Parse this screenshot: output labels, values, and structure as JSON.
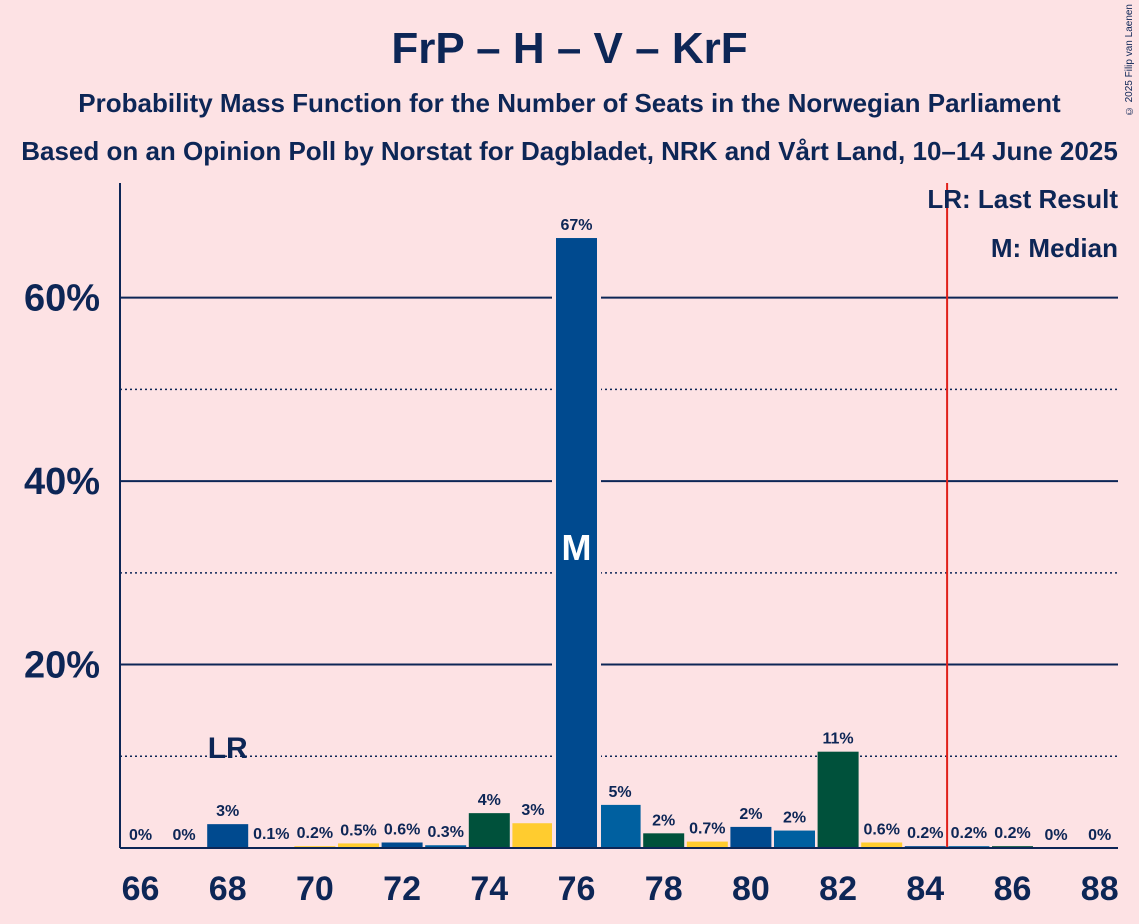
{
  "title": "FrP – H – V – KrF",
  "subtitle": "Probability Mass Function for the Number of Seats in the Norwegian Parliament",
  "subtitle2": "Based on an Opinion Poll by Norstat for Dagbladet, NRK and Vårt Land, 10–14 June 2025",
  "copyright": "© 2025 Filip van Laenen",
  "legend": {
    "lr": "LR: Last Result",
    "median": "M: Median"
  },
  "colors": {
    "background": "#fde2e4",
    "navy": "#0d2656",
    "frp": "#004a8f",
    "h": "#0060a0",
    "v": "#00513b",
    "krf": "#ffcc2f",
    "majority_line": "#e0201a"
  },
  "chart_data": {
    "type": "bar",
    "x": [
      66,
      67,
      68,
      69,
      70,
      71,
      72,
      73,
      74,
      75,
      76,
      77,
      78,
      79,
      80,
      81,
      82,
      83,
      84,
      85,
      86,
      87,
      88
    ],
    "values": [
      0,
      0,
      2.6,
      0.1,
      0.2,
      0.5,
      0.6,
      0.3,
      3.8,
      2.7,
      66.5,
      4.7,
      1.6,
      0.7,
      2.3,
      1.9,
      10.5,
      0.6,
      0.2,
      0.2,
      0.2,
      0,
      0
    ],
    "labels": [
      "0%",
      "0%",
      "3%",
      "0.1%",
      "0.2%",
      "0.5%",
      "0.6%",
      "0.3%",
      "4%",
      "3%",
      "67%",
      "5%",
      "2%",
      "0.7%",
      "2%",
      "2%",
      "11%",
      "0.6%",
      "0.2%",
      "0.2%",
      "0.2%",
      "0%",
      "0%"
    ],
    "bar_colors": [
      "#004a8f",
      "#0060a0",
      "#004a8f",
      "#00513b",
      "#ffcc2f",
      "#ffcc2f",
      "#004a8f",
      "#0060a0",
      "#00513b",
      "#ffcc2f",
      "#004a8f",
      "#0060a0",
      "#00513b",
      "#ffcc2f",
      "#004a8f",
      "#0060a0",
      "#00513b",
      "#ffcc2f",
      "#004a8f",
      "#0060a0",
      "#00513b",
      "#ffcc2f",
      "#004a8f"
    ],
    "x_ticks": [
      "66",
      "68",
      "70",
      "72",
      "74",
      "76",
      "78",
      "80",
      "82",
      "84",
      "86",
      "88"
    ],
    "y_ticks": [
      "20%",
      "40%",
      "60%"
    ],
    "ylim": [
      0,
      72.5
    ],
    "major_gridlines": [
      20,
      40,
      60
    ],
    "minor_gridlines": [
      10,
      30,
      50
    ],
    "last_result_seat": 68,
    "last_result_label": "LR",
    "median_seat": 76,
    "median_label": "M",
    "majority_threshold": 84.5
  }
}
